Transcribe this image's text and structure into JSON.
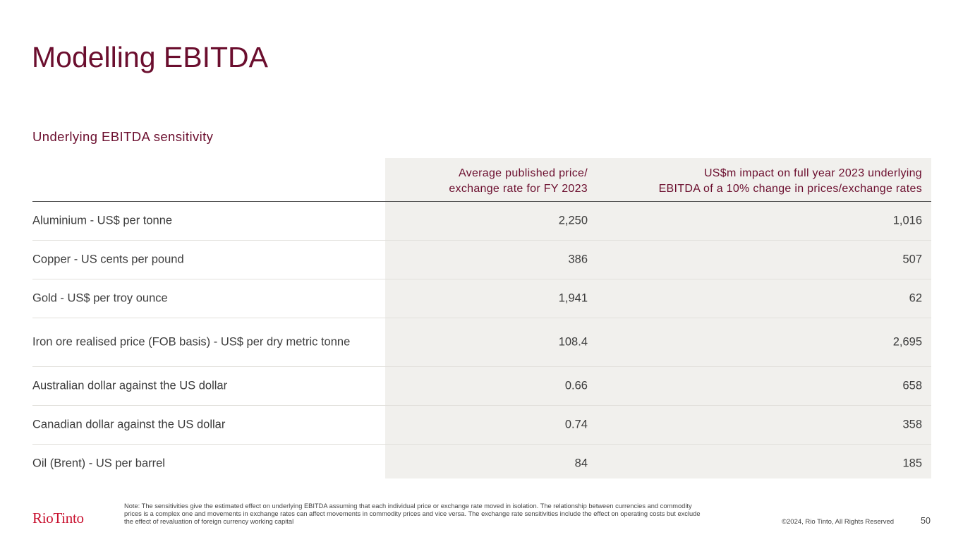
{
  "slide": {
    "title": "Modelling EBITDA",
    "subtitle": "Underlying EBITDA sensitivity"
  },
  "table": {
    "headers": {
      "label": "",
      "price_line1": "Average published price/",
      "price_line2": "exchange rate for FY 2023",
      "impact_line1": "US$m impact on full year 2023 underlying",
      "impact_line2": "EBITDA of a 10% change in prices/exchange rates"
    },
    "rows": [
      {
        "label": "Aluminium - US$ per tonne",
        "price": "2,250",
        "impact": "1,016"
      },
      {
        "label": "Copper - US cents per pound",
        "price": "386",
        "impact": "507"
      },
      {
        "label": "Gold - US$ per troy ounce",
        "price": "1,941",
        "impact": "62"
      },
      {
        "label": "Iron ore realised price (FOB basis) - US$ per dry metric tonne",
        "price": "108.4",
        "impact": "2,695"
      },
      {
        "label": "Australian dollar against the US dollar",
        "price": "0.66",
        "impact": "658"
      },
      {
        "label": "Canadian dollar against the US dollar",
        "price": "0.74",
        "impact": "358"
      },
      {
        "label": "Oil (Brent) - US per barrel",
        "price": "84",
        "impact": "185"
      }
    ]
  },
  "footer": {
    "logo": "RioTinto",
    "note": "Note: The sensitivities give the estimated effect on underlying EBITDA assuming that each individual price or exchange rate moved in isolation. The relationship between currencies and commodity prices is a complex one and movements in exchange rates can affect movements in commodity prices and vice versa. The exchange rate sensitivities include the effect on operating costs but exclude the effect of revaluation of foreign currency working capital",
    "copyright": "©2024, Rio Tinto, All Rights Reserved",
    "page_number": "50"
  },
  "colors": {
    "title": "#6b0e2e",
    "logo": "#c8102e",
    "column_shade": "#f1f0ed"
  }
}
